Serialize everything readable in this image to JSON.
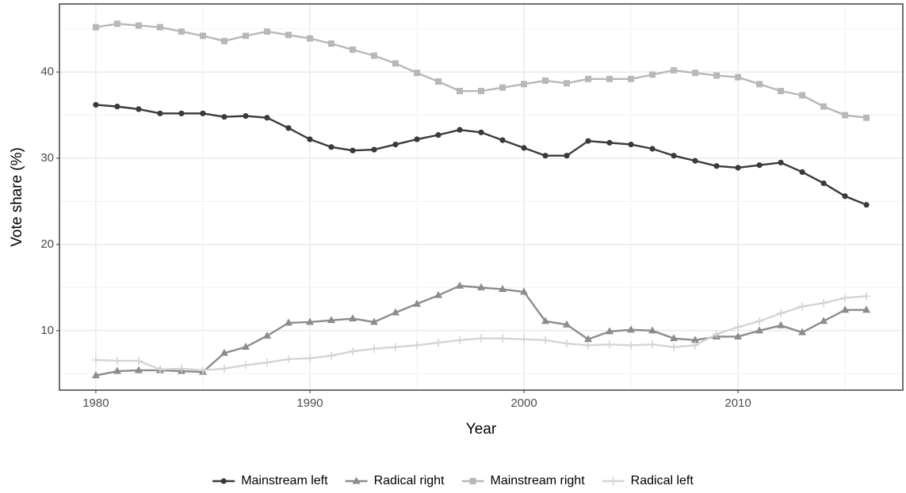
{
  "chart_data": {
    "type": "line",
    "x_label": "Year",
    "y_label": "Vote share (%)",
    "x": [
      1980,
      1981,
      1982,
      1983,
      1984,
      1985,
      1986,
      1987,
      1988,
      1989,
      1990,
      1991,
      1992,
      1993,
      1994,
      1995,
      1996,
      1997,
      1998,
      1999,
      2000,
      2001,
      2002,
      2003,
      2004,
      2005,
      2006,
      2007,
      2008,
      2009,
      2010,
      2011,
      2012,
      2013,
      2014,
      2015,
      2016
    ],
    "series": [
      {
        "name": "Mainstream left",
        "color": "#3a3a3a",
        "marker": "circle",
        "values": [
          36.2,
          36.0,
          35.7,
          35.2,
          35.2,
          35.2,
          34.8,
          34.9,
          34.7,
          33.5,
          32.2,
          31.3,
          30.9,
          31.0,
          31.6,
          32.2,
          32.7,
          33.3,
          33.0,
          32.1,
          31.2,
          30.3,
          30.3,
          32.0,
          31.8,
          31.6,
          31.1,
          30.3,
          29.7,
          29.1,
          28.9,
          29.2,
          29.5,
          28.4,
          27.1,
          25.6,
          24.6
        ]
      },
      {
        "name": "Radical right",
        "color": "#8c8c8c",
        "marker": "triangle",
        "values": [
          4.8,
          5.3,
          5.4,
          5.4,
          5.3,
          5.2,
          7.4,
          8.1,
          9.4,
          10.9,
          11.0,
          11.2,
          11.4,
          11.0,
          12.1,
          13.1,
          14.1,
          15.2,
          15.0,
          14.8,
          14.5,
          11.1,
          10.7,
          9.0,
          9.9,
          10.1,
          10.0,
          9.1,
          8.9,
          9.3,
          9.3,
          10.0,
          10.6,
          9.8,
          11.1,
          12.4,
          12.4
        ]
      },
      {
        "name": "Mainstream right",
        "color": "#b8b8b8",
        "marker": "square",
        "values": [
          45.2,
          45.6,
          45.4,
          45.2,
          44.7,
          44.2,
          43.6,
          44.2,
          44.7,
          44.3,
          43.9,
          43.3,
          42.6,
          41.9,
          41.0,
          39.9,
          38.9,
          37.8,
          37.8,
          38.2,
          38.6,
          39.0,
          38.7,
          39.2,
          39.2,
          39.2,
          39.7,
          40.2,
          39.9,
          39.6,
          39.4,
          38.6,
          37.8,
          37.3,
          36.0,
          35.0,
          34.7
        ]
      },
      {
        "name": "Radical left",
        "color": "#d4d4d4",
        "marker": "plus",
        "values": [
          6.6,
          6.5,
          6.5,
          5.5,
          5.6,
          5.4,
          5.6,
          6.0,
          6.3,
          6.7,
          6.8,
          7.1,
          7.6,
          7.9,
          8.1,
          8.3,
          8.6,
          8.9,
          9.1,
          9.1,
          9.0,
          8.9,
          8.5,
          8.3,
          8.4,
          8.3,
          8.4,
          8.1,
          8.3,
          9.6,
          10.4,
          11.1,
          12.0,
          12.8,
          13.2,
          13.8,
          14.0
        ]
      }
    ],
    "xlim": [
      1978.3,
      2017.7
    ],
    "xticks": [
      1980,
      1990,
      2000,
      2010
    ],
    "ylim": [
      3.1,
      47.9
    ],
    "yticks": [
      10,
      20,
      30,
      40
    ],
    "grid": true,
    "legend_position": "bottom"
  }
}
